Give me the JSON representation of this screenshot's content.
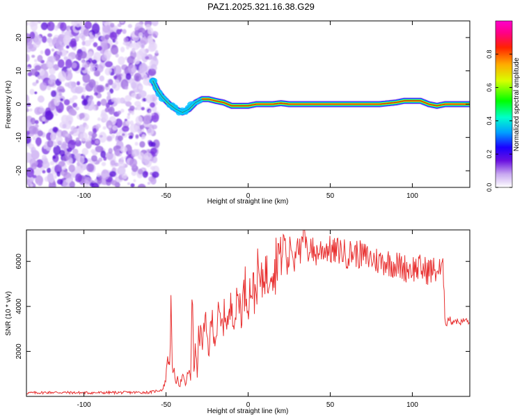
{
  "figure": {
    "title": "PAZ1.2025.321.16.38.G29"
  },
  "chart_data": [
    {
      "type": "heatmap",
      "name": "spectrogram",
      "xlabel": "Height of straight line (km)",
      "ylabel": "Frequency (Hz)",
      "xlim": [
        -135,
        135
      ],
      "ylim": [
        -25,
        25
      ],
      "xticks": [
        -100,
        -50,
        0,
        50,
        100
      ],
      "yticks": [
        -20,
        -10,
        0,
        10,
        20
      ],
      "noise_region_x": [
        -135,
        -58
      ],
      "signal_track": {
        "x": [
          -58,
          -55,
          -52,
          -48,
          -44,
          -40,
          -36,
          -32,
          -28,
          -24,
          -20,
          -15,
          -10,
          -5,
          0,
          5,
          10,
          15,
          20,
          25,
          30,
          40,
          50,
          60,
          70,
          80,
          90,
          95,
          100,
          105,
          110,
          115,
          120,
          125,
          130,
          135
        ],
        "freq": [
          7,
          4,
          2,
          0,
          -1.5,
          -2.5,
          -1.5,
          0.5,
          1.5,
          1.5,
          1,
          0.5,
          -0.5,
          -0.5,
          -0.5,
          0,
          0,
          0,
          0.3,
          0,
          0,
          0,
          0,
          0,
          0,
          0,
          0.5,
          1,
          1,
          1,
          0,
          -0.5,
          0,
          0,
          0,
          0
        ]
      },
      "colorbar": {
        "label": "Normalized spectral amplitude",
        "range": [
          0,
          1
        ],
        "ticks": [
          "0.0",
          "0.2",
          "0.4",
          "0.6",
          "0.8"
        ],
        "colors": [
          "#ffffff",
          "#c8a8f0",
          "#6a10e0",
          "#1a00ff",
          "#00a0ff",
          "#00ffcc",
          "#00ff00",
          "#d8ff00",
          "#ffaa00",
          "#ff2200",
          "#ff0088",
          "#ff00cc"
        ]
      }
    },
    {
      "type": "line",
      "name": "snr",
      "xlabel": "Height of straight line (km)",
      "ylabel": "SNR (10 * v/v)",
      "xlim": [
        -135,
        135
      ],
      "ylim": [
        0,
        7400
      ],
      "xticks": [
        -100,
        -50,
        0,
        50,
        100
      ],
      "yticks": [
        2000,
        4000,
        6000
      ],
      "color": "#e83030",
      "series": [
        {
          "name": "SNR",
          "x": [
            -135,
            -120,
            -100,
            -80,
            -60,
            -52,
            -50,
            -49,
            -48,
            -47,
            -46,
            -45,
            -44,
            -43,
            -42,
            -40,
            -38,
            -36,
            -35,
            -34,
            -33,
            -32,
            -31,
            -30,
            -28,
            -26,
            -24,
            -22,
            -20,
            -18,
            -16,
            -14,
            -12,
            -10,
            -8,
            -6,
            -4,
            -2,
            0,
            2,
            4,
            6,
            8,
            10,
            12,
            14,
            16,
            18,
            20,
            22,
            24,
            26,
            28,
            30,
            32,
            34,
            36,
            38,
            40,
            44,
            48,
            52,
            56,
            60,
            64,
            68,
            72,
            76,
            80,
            84,
            88,
            92,
            96,
            100,
            104,
            108,
            112,
            116,
            119,
            120,
            121,
            122,
            124,
            126,
            128,
            130,
            132,
            135
          ],
          "y": [
            150,
            180,
            160,
            170,
            180,
            300,
            800,
            2000,
            1200,
            3800,
            700,
            1500,
            300,
            1100,
            400,
            900,
            500,
            1300,
            600,
            5300,
            1200,
            2200,
            900,
            3000,
            2400,
            3200,
            2000,
            3500,
            2500,
            3600,
            3000,
            3800,
            3200,
            4200,
            3500,
            4500,
            3800,
            4900,
            4300,
            5000,
            4500,
            5500,
            4800,
            5800,
            5100,
            6300,
            5400,
            6700,
            5800,
            7200,
            5600,
            6900,
            5900,
            7300,
            6100,
            7400,
            6200,
            6900,
            6300,
            6500,
            6600,
            6400,
            6500,
            6300,
            6400,
            6300,
            6200,
            6100,
            6000,
            6000,
            5900,
            5800,
            5700,
            5700,
            5700,
            5600,
            5600,
            5600,
            5500,
            3400,
            3200,
            3500,
            3300,
            3400,
            3300,
            3300,
            3400,
            3300
          ]
        }
      ]
    }
  ]
}
